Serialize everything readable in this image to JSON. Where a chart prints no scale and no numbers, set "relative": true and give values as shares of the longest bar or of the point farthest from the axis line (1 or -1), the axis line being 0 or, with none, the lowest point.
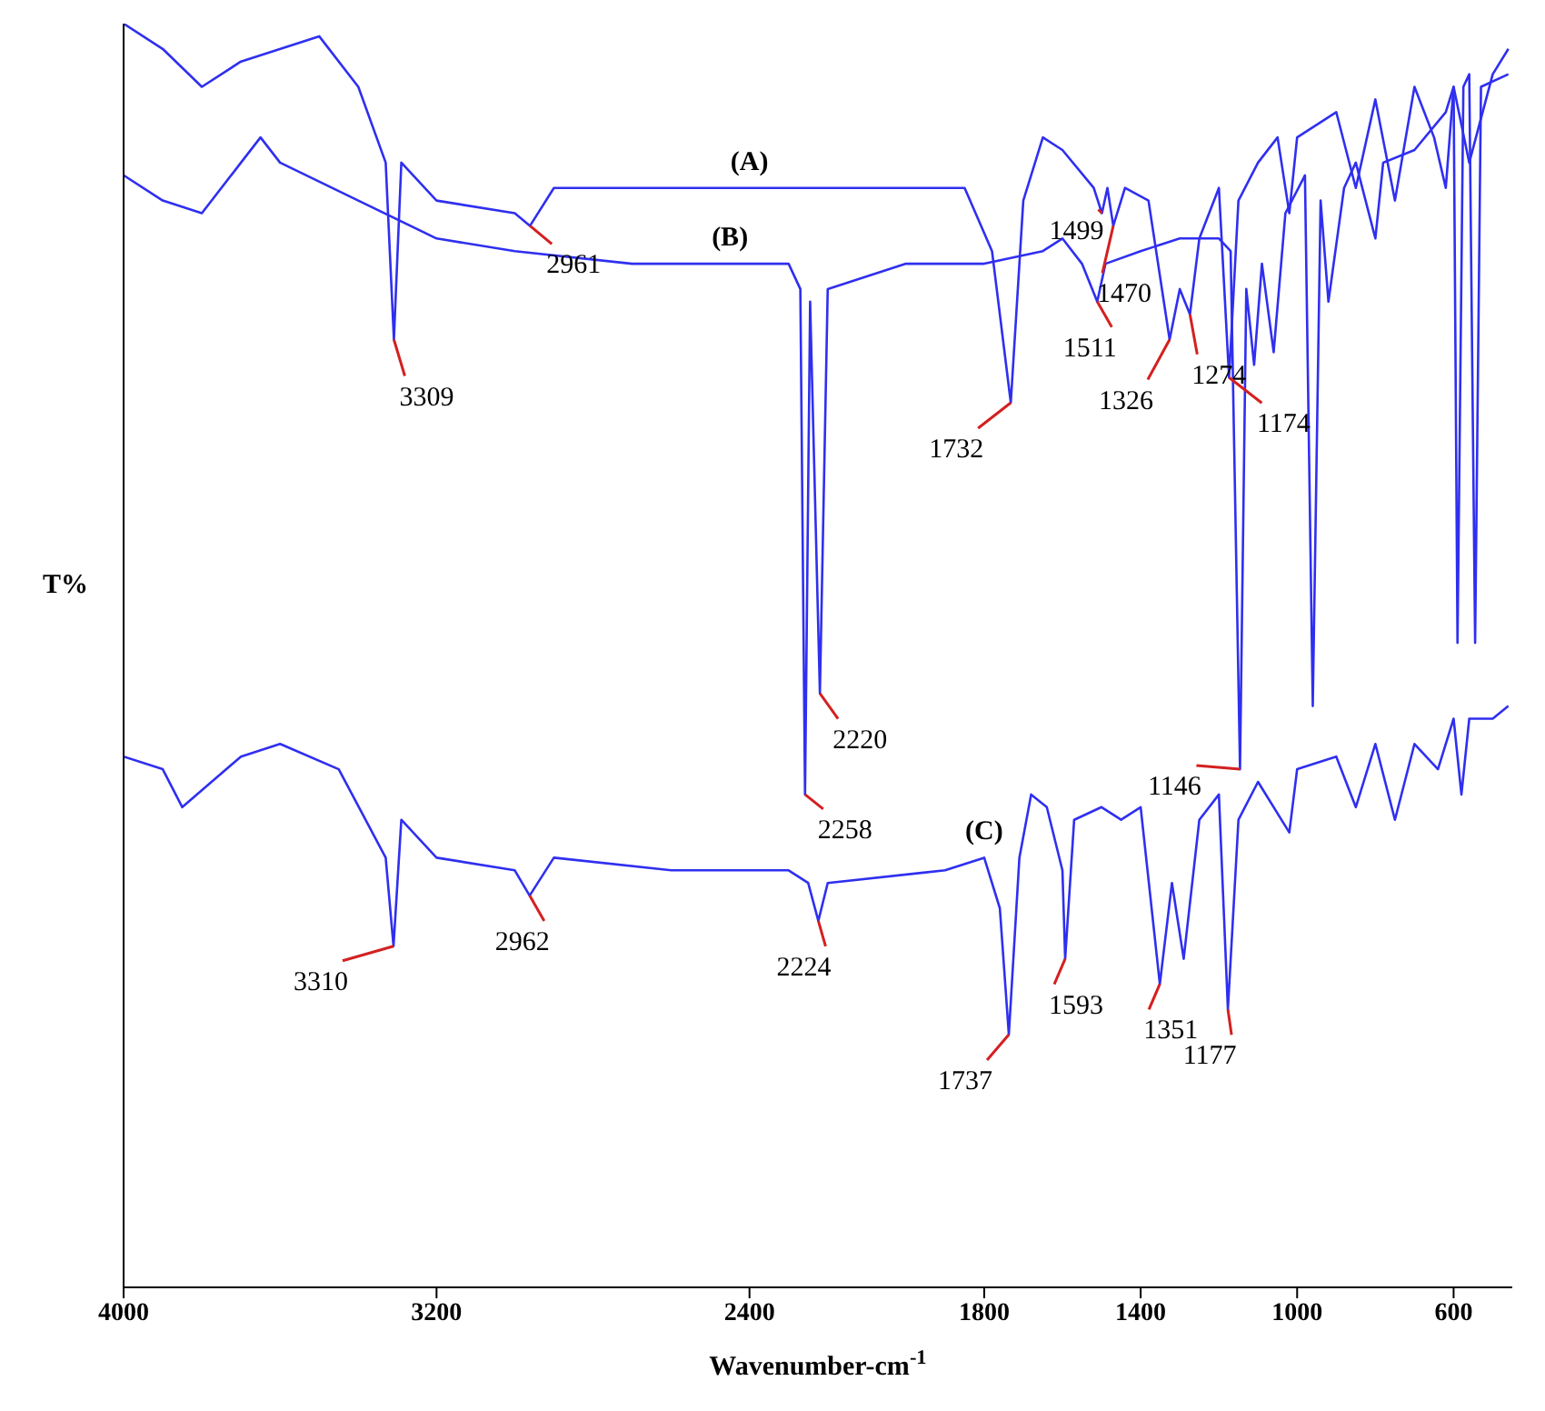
{
  "chart_data": {
    "type": "line",
    "relative": true,
    "xlabel": "Wavenumber-cm$^{-1}$",
    "ylabel": "T%",
    "xlim": [
      4000,
      450
    ],
    "xticks": [
      4000,
      3200,
      2400,
      1800,
      1400,
      1000,
      600
    ],
    "grid": false,
    "legend": false,
    "marker": "none",
    "line_style": "solid",
    "series": [
      {
        "name": "(A)",
        "color": "#2f2ff0",
        "x": [
          4000,
          3900,
          3800,
          3700,
          3500,
          3400,
          3330,
          3309,
          3290,
          3200,
          3000,
          2961,
          2900,
          2700,
          2400,
          2000,
          1850,
          1780,
          1732,
          1700,
          1650,
          1600,
          1520,
          1499,
          1485,
          1470,
          1440,
          1380,
          1326,
          1300,
          1274,
          1250,
          1200,
          1174,
          1150,
          1100,
          1050,
          1020,
          1000,
          900,
          850,
          800,
          750,
          700,
          650,
          620,
          600,
          560,
          500,
          460
        ],
        "values": [
          1.0,
          0.98,
          0.95,
          0.97,
          0.99,
          0.95,
          0.89,
          0.75,
          0.89,
          0.86,
          0.85,
          0.84,
          0.87,
          0.87,
          0.87,
          0.87,
          0.87,
          0.82,
          0.7,
          0.86,
          0.91,
          0.9,
          0.87,
          0.85,
          0.87,
          0.84,
          0.87,
          0.86,
          0.75,
          0.79,
          0.77,
          0.83,
          0.87,
          0.72,
          0.86,
          0.89,
          0.91,
          0.85,
          0.91,
          0.93,
          0.87,
          0.94,
          0.86,
          0.95,
          0.91,
          0.87,
          0.95,
          0.89,
          0.96,
          0.98
        ]
      },
      {
        "name": "(B)",
        "color": "#2f2ff0",
        "x": [
          4000,
          3900,
          3800,
          3700,
          3650,
          3600,
          3400,
          3200,
          3000,
          2700,
          2450,
          2300,
          2270,
          2258,
          2245,
          2220,
          2200,
          2000,
          1800,
          1650,
          1600,
          1550,
          1511,
          1490,
          1400,
          1300,
          1200,
          1170,
          1146,
          1130,
          1110,
          1090,
          1060,
          1030,
          980,
          960,
          940,
          920,
          880,
          850,
          800,
          780,
          700,
          620,
          600,
          590,
          575,
          560,
          545,
          530,
          460
        ],
        "values": [
          0.88,
          0.86,
          0.85,
          0.89,
          0.91,
          0.89,
          0.86,
          0.83,
          0.82,
          0.81,
          0.81,
          0.81,
          0.79,
          0.39,
          0.78,
          0.47,
          0.79,
          0.81,
          0.81,
          0.82,
          0.83,
          0.81,
          0.78,
          0.81,
          0.82,
          0.83,
          0.83,
          0.82,
          0.41,
          0.79,
          0.73,
          0.81,
          0.74,
          0.85,
          0.88,
          0.46,
          0.86,
          0.78,
          0.87,
          0.89,
          0.83,
          0.89,
          0.9,
          0.93,
          0.95,
          0.51,
          0.95,
          0.96,
          0.51,
          0.95,
          0.96
        ]
      },
      {
        "name": "(C)",
        "color": "#2f2ff0",
        "x": [
          4000,
          3900,
          3850,
          3700,
          3600,
          3450,
          3330,
          3310,
          3290,
          3200,
          3000,
          2962,
          2900,
          2600,
          2300,
          2250,
          2224,
          2200,
          1900,
          1800,
          1760,
          1737,
          1710,
          1680,
          1640,
          1600,
          1593,
          1570,
          1500,
          1450,
          1400,
          1351,
          1320,
          1290,
          1250,
          1200,
          1177,
          1150,
          1100,
          1020,
          1000,
          900,
          850,
          800,
          750,
          700,
          640,
          600,
          580,
          560,
          500,
          460
        ],
        "values": [
          0.42,
          0.41,
          0.38,
          0.42,
          0.43,
          0.41,
          0.34,
          0.27,
          0.37,
          0.34,
          0.33,
          0.31,
          0.34,
          0.33,
          0.33,
          0.32,
          0.29,
          0.32,
          0.33,
          0.34,
          0.3,
          0.2,
          0.34,
          0.39,
          0.38,
          0.33,
          0.26,
          0.37,
          0.38,
          0.37,
          0.38,
          0.24,
          0.32,
          0.26,
          0.37,
          0.39,
          0.22,
          0.37,
          0.4,
          0.36,
          0.41,
          0.42,
          0.38,
          0.43,
          0.37,
          0.43,
          0.41,
          0.45,
          0.39,
          0.45,
          0.45,
          0.46
        ]
      }
    ],
    "annotations": [
      {
        "text": "3309",
        "x": 3309,
        "y": 0.75
      },
      {
        "text": "2961",
        "x": 2961,
        "y": 0.84
      },
      {
        "text": "1732",
        "x": 1732,
        "y": 0.7
      },
      {
        "text": "1499",
        "x": 1499,
        "y": 0.85
      },
      {
        "text": "1470",
        "x": 1470,
        "y": 0.84
      },
      {
        "text": "1326",
        "x": 1326,
        "y": 0.75
      },
      {
        "text": "1274",
        "x": 1274,
        "y": 0.77
      },
      {
        "text": "1174",
        "x": 1174,
        "y": 0.72
      },
      {
        "text": "1511",
        "x": 1511,
        "y": 0.78
      },
      {
        "text": "2220",
        "x": 2220,
        "y": 0.47
      },
      {
        "text": "2258",
        "x": 2258,
        "y": 0.39
      },
      {
        "text": "1146",
        "x": 1146,
        "y": 0.41
      },
      {
        "text": "3310",
        "x": 3310,
        "y": 0.27
      },
      {
        "text": "2962",
        "x": 2962,
        "y": 0.31
      },
      {
        "text": "2224",
        "x": 2224,
        "y": 0.29
      },
      {
        "text": "1737",
        "x": 1737,
        "y": 0.2
      },
      {
        "text": "1593",
        "x": 1593,
        "y": 0.26
      },
      {
        "text": "1351",
        "x": 1351,
        "y": 0.24
      },
      {
        "text": "1177",
        "x": 1177,
        "y": 0.22
      }
    ]
  }
}
